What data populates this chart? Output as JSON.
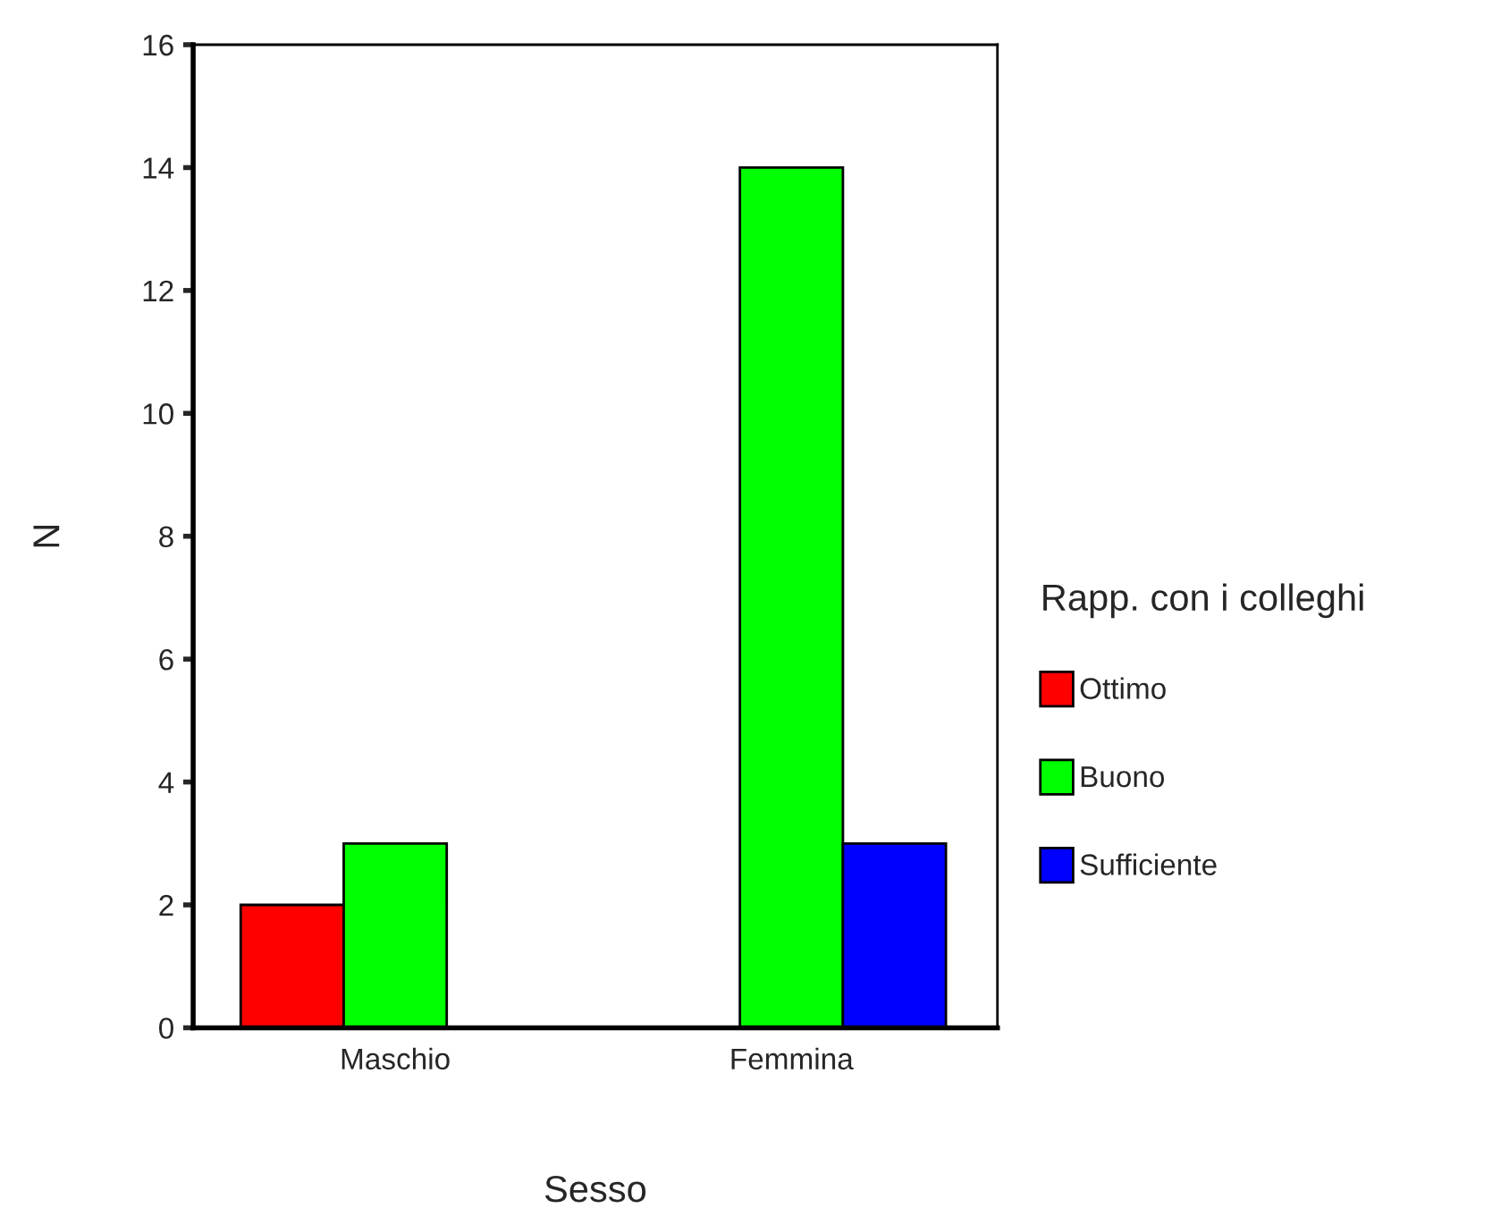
{
  "chart_data": {
    "type": "bar",
    "xlabel": "Sesso",
    "ylabel": "N",
    "legend_title": "Rapp. con i colleghi",
    "categories": [
      "Maschio",
      "Femmina"
    ],
    "series": [
      {
        "name": "Ottimo",
        "color": "#ff0000",
        "values": [
          2,
          null
        ]
      },
      {
        "name": "Buono",
        "color": "#00ff00",
        "values": [
          3,
          14
        ]
      },
      {
        "name": "Sufficiente",
        "color": "#0000ff",
        "values": [
          null,
          3
        ]
      }
    ],
    "ylim": [
      0,
      16
    ],
    "yticks": [
      0,
      2,
      4,
      6,
      8,
      10,
      12,
      14,
      16
    ],
    "grid": false,
    "legend": "right"
  }
}
